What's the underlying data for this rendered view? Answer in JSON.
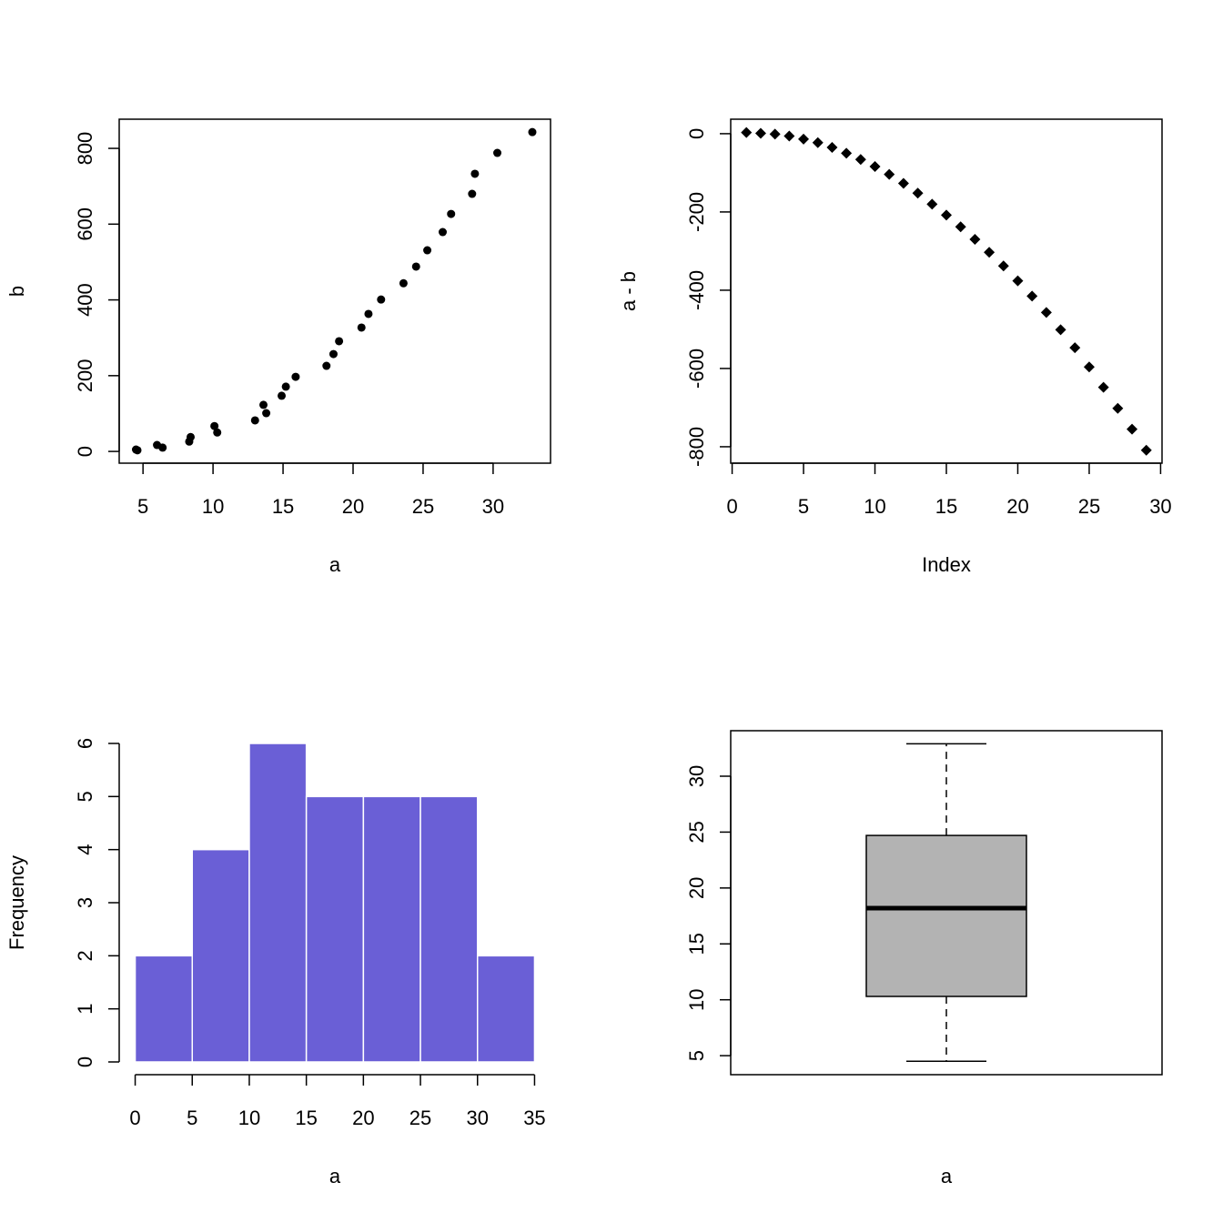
{
  "chart_data": [
    {
      "type": "scatter",
      "marker": "circle",
      "color": "#000000",
      "frame": true,
      "xlabel": "a",
      "ylabel": "b",
      "x": [
        4.5,
        4.6,
        6.0,
        6.4,
        8.3,
        8.4,
        10.1,
        10.3,
        13.0,
        13.6,
        13.8,
        14.9,
        15.2,
        15.9,
        18.1,
        18.6,
        19.0,
        20.6,
        21.1,
        22.0,
        23.6,
        24.5,
        25.3,
        26.4,
        27.0,
        28.5,
        28.7,
        30.3,
        32.8
      ],
      "values": [
        5,
        3,
        17,
        10,
        26,
        38,
        67,
        50,
        82,
        123,
        101,
        147,
        171,
        197,
        226,
        257,
        291,
        327,
        363,
        401,
        444,
        488,
        531,
        579,
        627,
        680,
        733,
        788,
        843
      ],
      "xlim": [
        3.3,
        34.1
      ],
      "ylim": [
        -31,
        877
      ],
      "xticks": [
        5,
        10,
        15,
        20,
        25,
        30
      ],
      "yticks": [
        0,
        200,
        400,
        600,
        800
      ]
    },
    {
      "type": "scatter",
      "marker": "diamond",
      "color": "#000000",
      "frame": true,
      "xlabel": "Index",
      "ylabel": "a - b",
      "x": [
        1,
        2,
        3,
        4,
        5,
        6,
        7,
        8,
        9,
        10,
        11,
        12,
        13,
        14,
        15,
        16,
        17,
        18,
        19,
        20,
        21,
        22,
        23,
        24,
        25,
        26,
        27,
        28,
        29
      ],
      "values": [
        3,
        1,
        -1,
        -6,
        -14,
        -23,
        -35,
        -50,
        -66,
        -84,
        -104,
        -127,
        -152,
        -180,
        -208,
        -238,
        -270,
        -303,
        -338,
        -376,
        -415,
        -457,
        -501,
        -547,
        -596,
        -648,
        -702,
        -755,
        -809
      ],
      "xlim": [
        -0.1,
        30.1
      ],
      "ylim": [
        -842,
        37
      ],
      "xticks": [
        0,
        5,
        10,
        15,
        20,
        25,
        30
      ],
      "yticks": [
        -800,
        -600,
        -400,
        -200,
        0
      ]
    },
    {
      "type": "histogram",
      "color": "#6a5fd6",
      "edgecolor": "#ffffff",
      "frame": false,
      "xlabel": "a",
      "ylabel": "Frequency",
      "bins": [
        0,
        5,
        10,
        15,
        20,
        25,
        30,
        35
      ],
      "counts": [
        2,
        4,
        6,
        5,
        5,
        5,
        2
      ],
      "xlim": [
        -1.4,
        36.4
      ],
      "ylim": [
        -0.24,
        6.24
      ],
      "xticks": [
        0,
        5,
        10,
        15,
        20,
        25,
        30,
        35
      ],
      "yticks": [
        0,
        1,
        2,
        3,
        4,
        5,
        6
      ]
    },
    {
      "type": "box",
      "color": "#b3b3b3",
      "frame": true,
      "xlabel": "a",
      "stats": {
        "min": 4.5,
        "q1": 10.3,
        "median": 18.2,
        "q3": 24.7,
        "max": 32.9
      },
      "ylim": [
        3.3,
        34.07
      ],
      "yticks": [
        5,
        10,
        15,
        20,
        25,
        30
      ]
    }
  ]
}
